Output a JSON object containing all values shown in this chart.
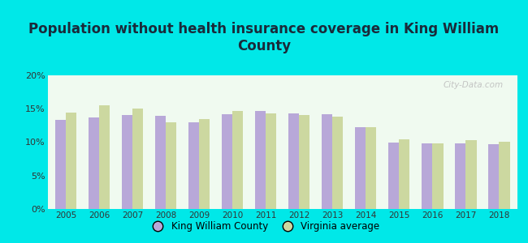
{
  "title": "Population without health insurance coverage in King William\nCounty",
  "years": [
    2005,
    2006,
    2007,
    2008,
    2009,
    2010,
    2011,
    2012,
    2013,
    2014,
    2015,
    2016,
    2017,
    2018
  ],
  "king_william": [
    13.3,
    13.7,
    14.0,
    13.9,
    13.0,
    14.2,
    14.7,
    14.3,
    14.2,
    12.3,
    9.9,
    9.8,
    9.8,
    9.7
  ],
  "virginia_avg": [
    14.4,
    15.5,
    15.0,
    13.0,
    13.4,
    14.7,
    14.3,
    14.1,
    13.8,
    12.3,
    10.4,
    9.8,
    10.3,
    10.1
  ],
  "bar_color_kw": "#b8a8d8",
  "bar_color_va": "#ccd8a0",
  "bg_outer": "#00e8e8",
  "bg_plot_top": "#f0faf0",
  "bg_plot_bottom": "#d8f0d8",
  "ylim": [
    0,
    20
  ],
  "yticks": [
    0,
    5,
    10,
    15,
    20
  ],
  "ytick_labels": [
    "0%",
    "5%",
    "10%",
    "15%",
    "20%"
  ],
  "legend_kw": "King William County",
  "legend_va": "Virginia average",
  "title_fontsize": 12,
  "title_color": "#1a2a3a",
  "tick_color": "#333333",
  "watermark": "City-Data.com"
}
